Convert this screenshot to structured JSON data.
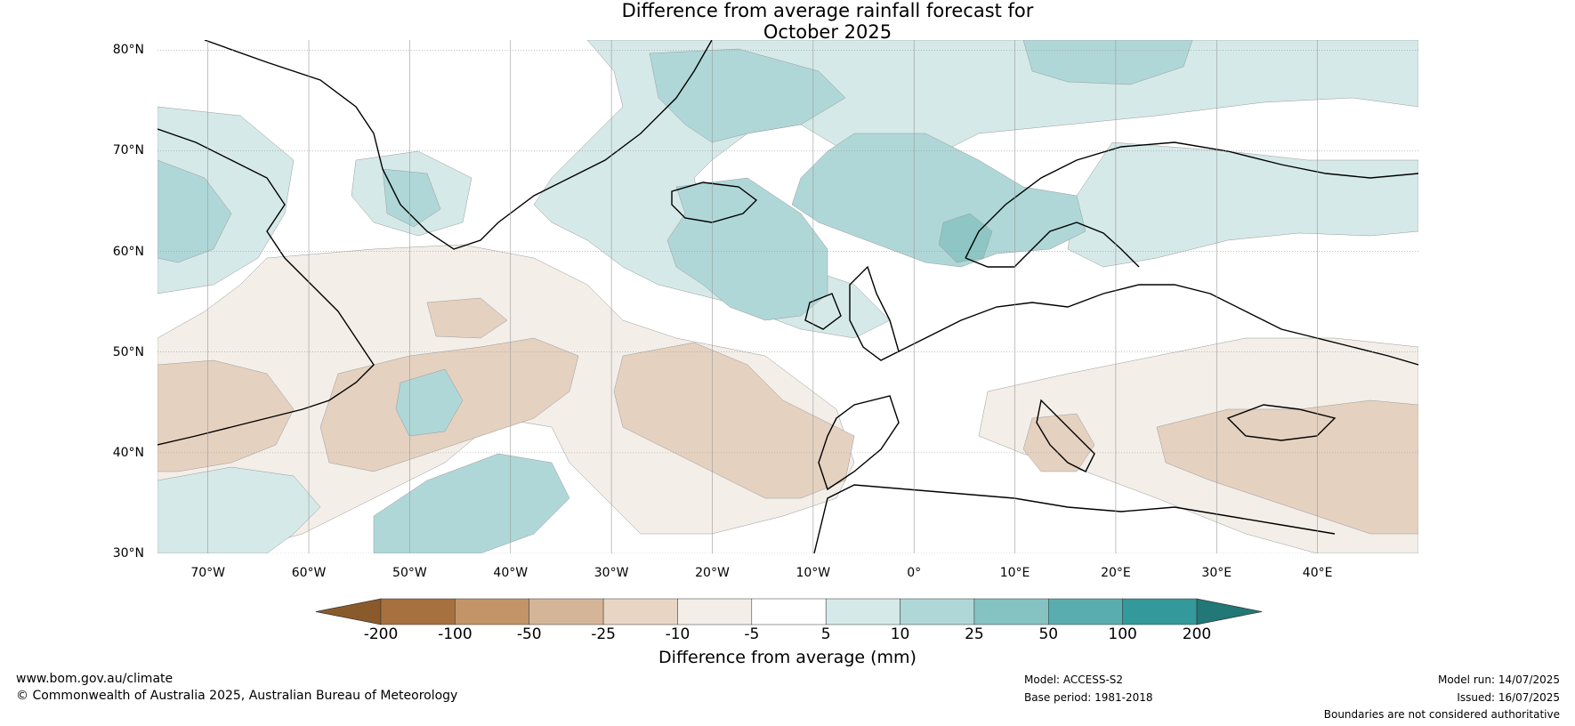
{
  "title": {
    "line1": "Difference from average rainfall forecast for",
    "line2": "October 2025"
  },
  "map": {
    "lat_labels": [
      "80°N",
      "70°N",
      "60°N",
      "50°N",
      "40°N",
      "30°N"
    ],
    "lon_labels": [
      "70°W",
      "60°W",
      "50°W",
      "40°W",
      "30°W",
      "20°W",
      "10°W",
      "0°",
      "10°E",
      "20°E",
      "30°E",
      "40°E"
    ],
    "lat_range": [
      30,
      81
    ],
    "lon_range": [
      -75,
      50
    ],
    "colors": {
      "dry_strong": "#e5d1c0",
      "dry_weak": "#f3eee8",
      "wet_weak": "#d5e9e8",
      "wet_med": "#afd7d8",
      "wet_strong": "#8dc6c5"
    }
  },
  "colorbar": {
    "title": "Difference from average (mm)",
    "labels": [
      "-200",
      "-100",
      "-50",
      "-25",
      "-10",
      "-5",
      "5",
      "10",
      "25",
      "50",
      "100",
      "200"
    ],
    "colors": [
      "#8b5a2b",
      "#a6703f",
      "#c29468",
      "#d5b598",
      "#e8d5c4",
      "#f3eee8",
      "#ffffff",
      "#d5e9e8",
      "#afd7d8",
      "#85c3c2",
      "#5aadae",
      "#33999a",
      "#227777"
    ]
  },
  "footer": {
    "url": "www.bom.gov.au/climate",
    "copyright": "© Commonwealth of Australia 2025, Australian Bureau of Meteorology",
    "model": "Model: ACCESS-S2",
    "base_period": "Base period: 1981-2018",
    "model_run": "Model run: 14/07/2025",
    "issued": "Issued: 16/07/2025",
    "disclaimer": "Boundaries are not considered authoritative"
  }
}
